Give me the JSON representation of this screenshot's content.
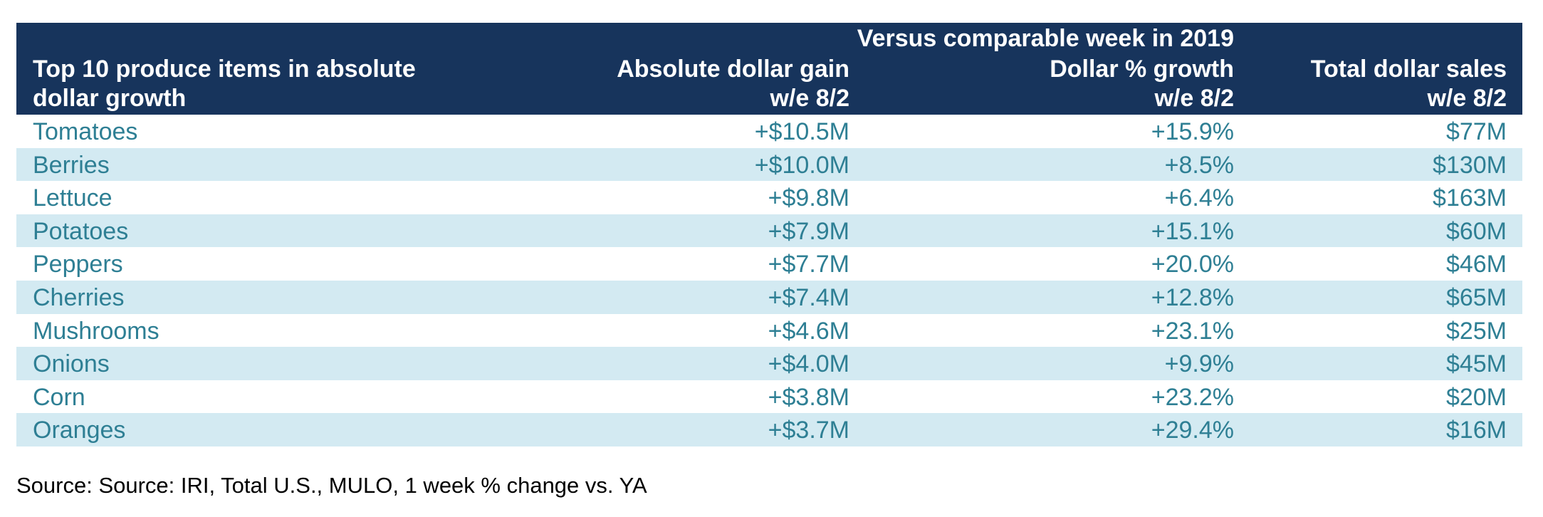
{
  "chart_data": {
    "type": "table",
    "group_header": "Versus comparable week in 2019",
    "columns": [
      {
        "line1": "Top 10 produce items in absolute",
        "line2": "dollar growth"
      },
      {
        "line1": "Absolute dollar gain",
        "line2": "w/e 8/2"
      },
      {
        "line1": "Dollar % growth",
        "line2": "w/e 8/2"
      },
      {
        "line1": "Total dollar sales",
        "line2": "w/e 8/2"
      }
    ],
    "rows": [
      {
        "item": "Tomatoes",
        "gain": "+$10.5M",
        "pct": "+15.9%",
        "sales": "$77M"
      },
      {
        "item": "Berries",
        "gain": "+$10.0M",
        "pct": "+8.5%",
        "sales": "$130M"
      },
      {
        "item": "Lettuce",
        "gain": "+$9.8M",
        "pct": "+6.4%",
        "sales": "$163M"
      },
      {
        "item": "Potatoes",
        "gain": "+$7.9M",
        "pct": "+15.1%",
        "sales": "$60M"
      },
      {
        "item": "Peppers",
        "gain": "+$7.7M",
        "pct": "+20.0%",
        "sales": "$46M"
      },
      {
        "item": "Cherries",
        "gain": "+$7.4M",
        "pct": "+12.8%",
        "sales": "$65M"
      },
      {
        "item": "Mushrooms",
        "gain": "+$4.6M",
        "pct": "+23.1%",
        "sales": "$25M"
      },
      {
        "item": "Onions",
        "gain": "+$4.0M",
        "pct": "+9.9%",
        "sales": "$45M"
      },
      {
        "item": "Corn",
        "gain": "+$3.8M",
        "pct": "+23.2%",
        "sales": "$20M"
      },
      {
        "item": "Oranges",
        "gain": "+$3.7M",
        "pct": "+29.4%",
        "sales": "$16M"
      }
    ],
    "source": "Source: Source: IRI, Total U.S., MULO, 1 week % change vs. YA"
  },
  "colors": {
    "header_bg": "#17345c",
    "header_text": "#ffffff",
    "row_text": "#2e7f94",
    "row_shade": "#d3eaf2"
  }
}
